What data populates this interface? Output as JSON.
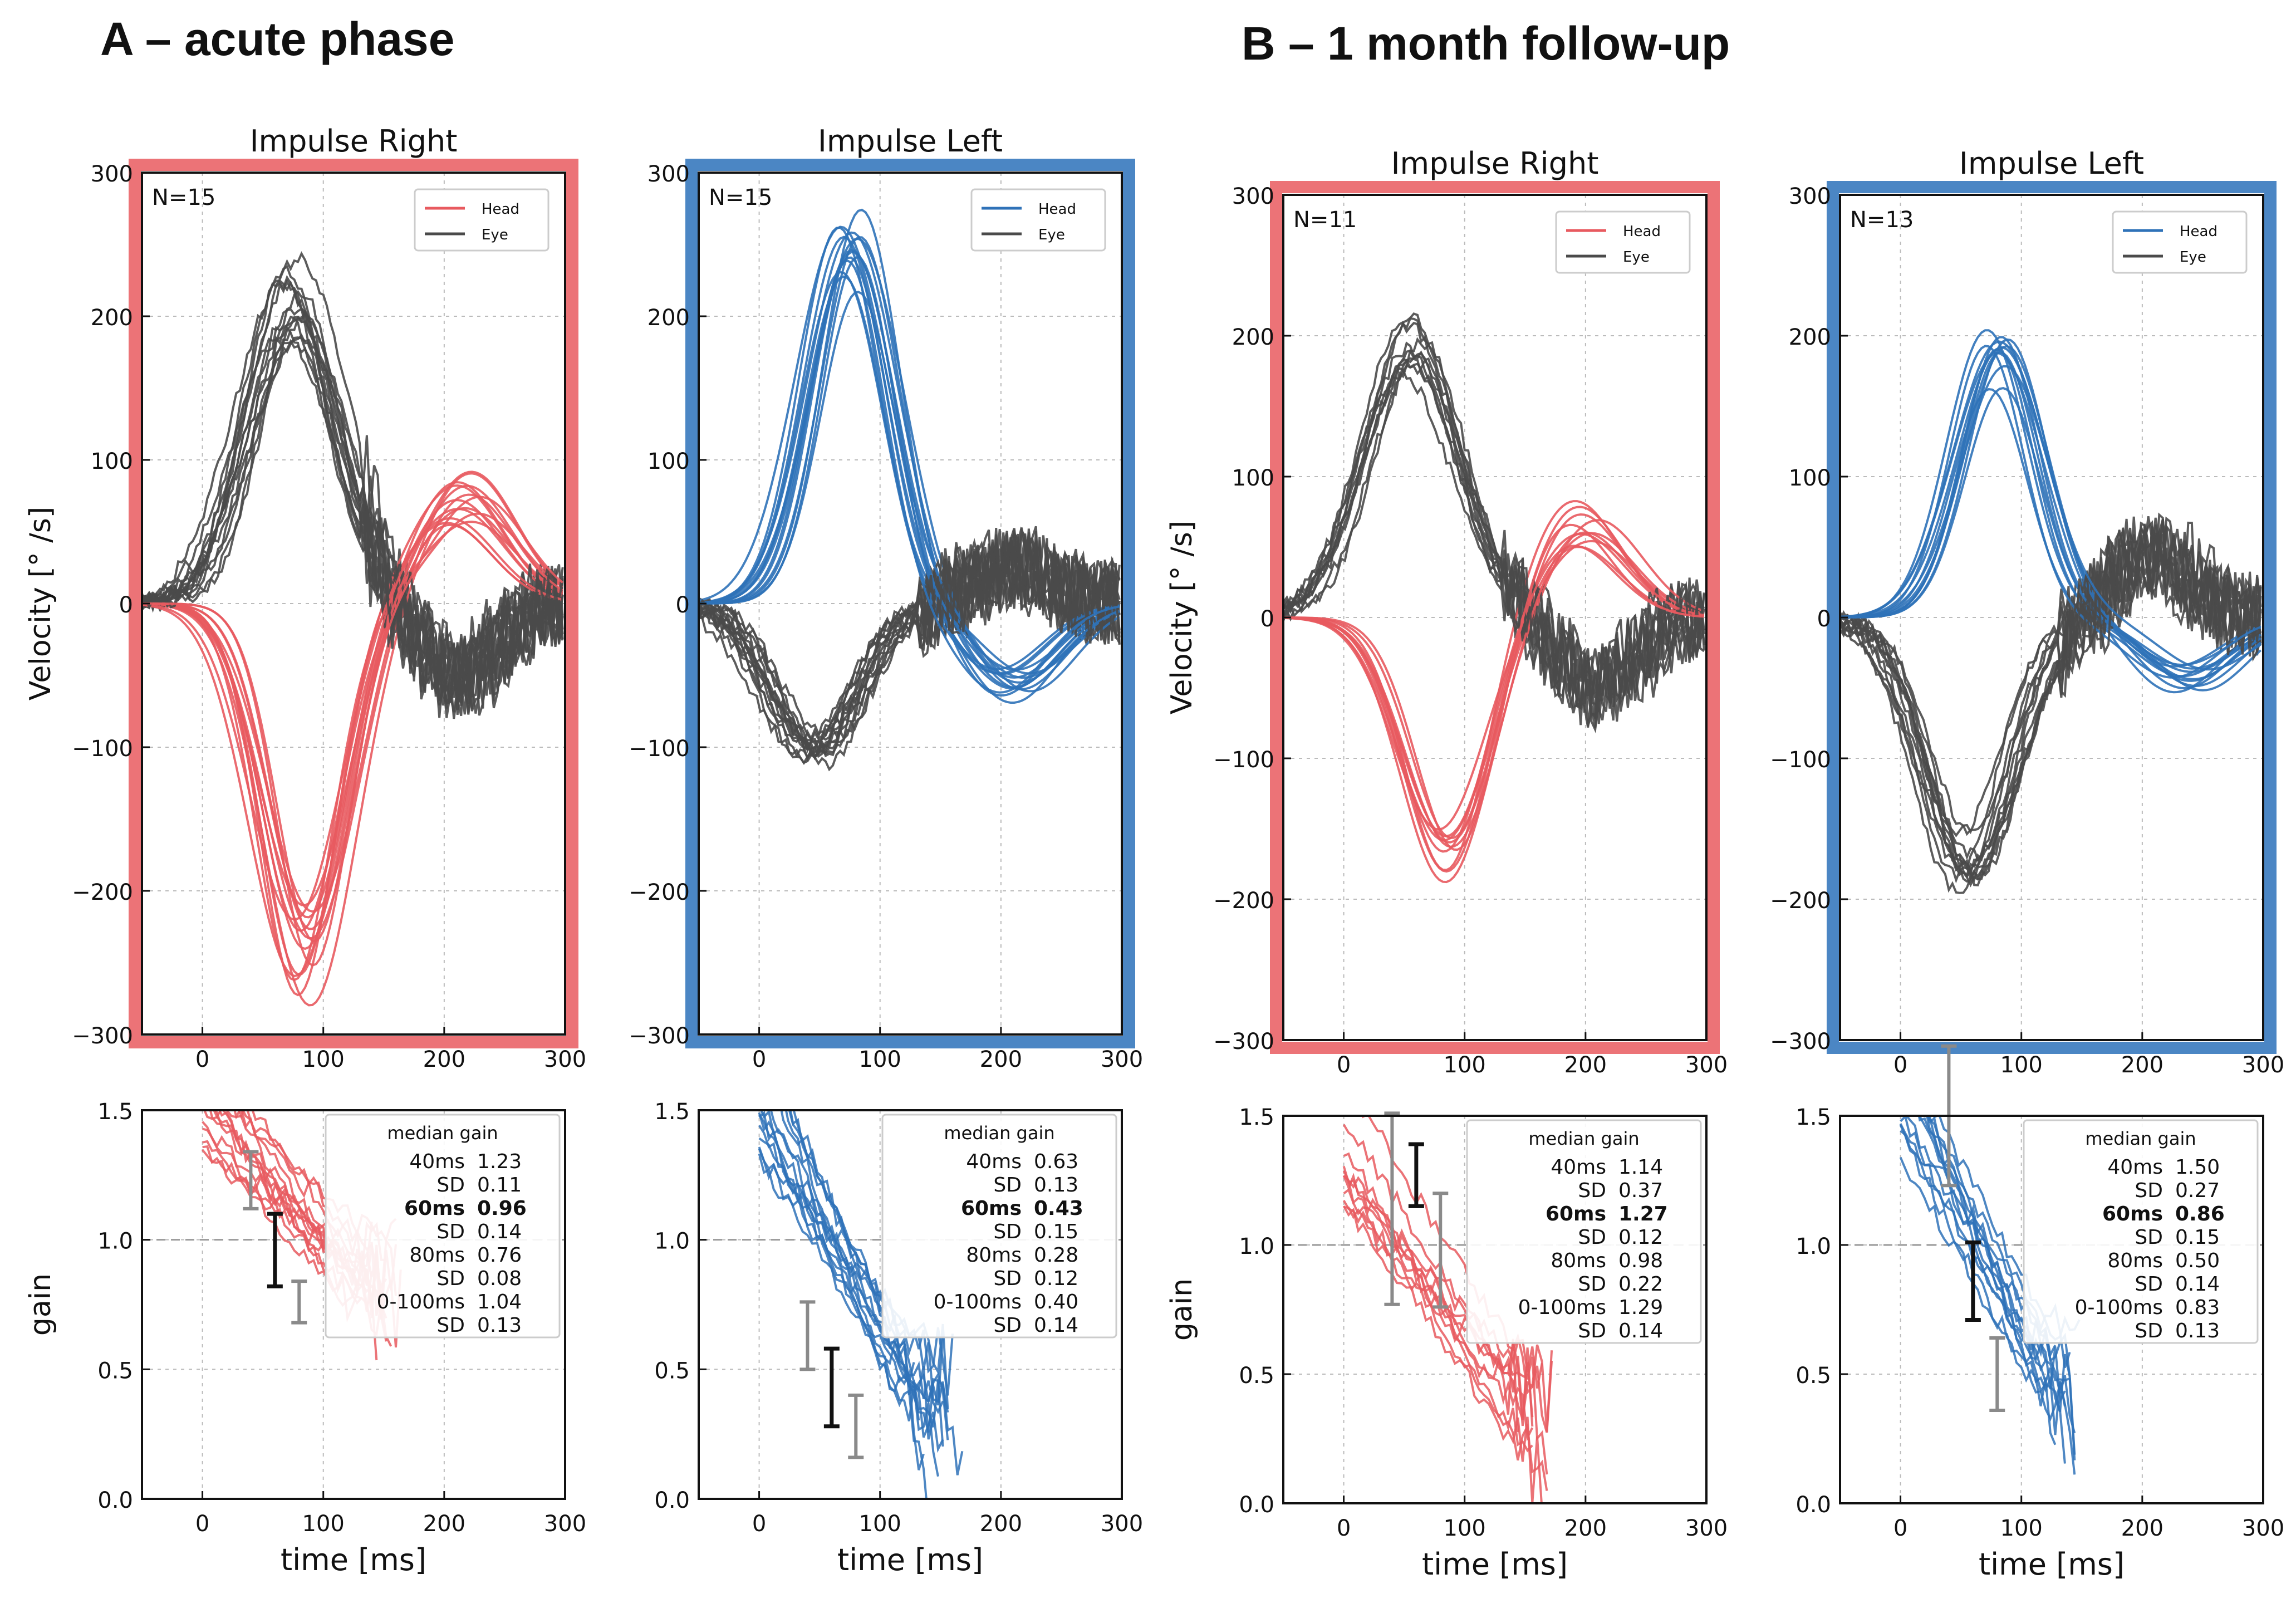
{
  "sections": [
    {
      "id": "A",
      "title": "A – acute phase"
    },
    {
      "id": "B",
      "title": "B – 1 month follow-up"
    }
  ],
  "colors": {
    "head_right": "#e85a5f",
    "head_left": "#2f72b8",
    "eye": "#4a4a4a",
    "frame_right": "#ec7377",
    "frame_left": "#4b86c4"
  },
  "axis_labels": {
    "velocity": "Velocity [° /s]",
    "gain": "gain",
    "time": "time [ms]"
  },
  "chart_data": [
    {
      "type": "line",
      "section": "A",
      "title": "Impulse Right",
      "n_label": "N=15",
      "legend": [
        "Head",
        "Eye"
      ],
      "ylabel": "Velocity [° /s]",
      "xlim": [
        -50,
        300
      ],
      "ylim": [
        -300,
        300
      ],
      "xticks": [
        0,
        100,
        200,
        300
      ],
      "xtick_labels": [
        "0",
        "100",
        "200",
        "300"
      ],
      "yticks": [
        -300,
        -200,
        -100,
        0,
        100,
        200,
        300
      ],
      "ytick_labels": [
        "−300",
        "−200",
        "−100",
        "0",
        "100",
        "200",
        "300"
      ],
      "head_peak": -245,
      "eye_peak": 210,
      "eye_peak_t": 75,
      "head_peak_t": 85,
      "head_rebound": 80,
      "head_rebound_t": 215,
      "n_traces": 15,
      "gain": {
        "title": "median gain",
        "xlabel": "time [ms]",
        "ylabel": "gain",
        "xlim": [
          -50,
          300
        ],
        "ylim": [
          0,
          1.5
        ],
        "xticks": [
          0,
          100,
          200,
          300
        ],
        "xtick_labels": [
          "0",
          "100",
          "200",
          "300"
        ],
        "yticks": [
          0,
          0.5,
          1.0,
          1.5
        ],
        "ytick_labels": [
          "0.0",
          "0.5",
          "1.0",
          "1.5"
        ],
        "start": 1.45,
        "end": 0.75,
        "t_end": 150,
        "errorbars": [
          {
            "t": 40,
            "mean": 1.23,
            "sd": 0.11
          },
          {
            "t": 60,
            "mean": 0.96,
            "sd": 0.14
          },
          {
            "t": 80,
            "mean": 0.76,
            "sd": 0.08
          }
        ],
        "rows": [
          [
            "40ms",
            "1.23"
          ],
          [
            "SD",
            "0.11"
          ],
          [
            "60ms",
            "0.96"
          ],
          [
            "SD",
            "0.14"
          ],
          [
            "80ms",
            "0.76"
          ],
          [
            "SD",
            "0.08"
          ],
          [
            "0-100ms",
            "1.04"
          ],
          [
            "SD",
            "0.13"
          ]
        ],
        "bold_row": 2
      }
    },
    {
      "type": "line",
      "section": "A",
      "title": "Impulse Left",
      "n_label": "N=15",
      "legend": [
        "Head",
        "Eye"
      ],
      "ylabel": "",
      "xlim": [
        -50,
        300
      ],
      "ylim": [
        -300,
        300
      ],
      "xticks": [
        0,
        100,
        200,
        300
      ],
      "xtick_labels": [
        "0",
        "100",
        "200",
        "300"
      ],
      "yticks": [
        -300,
        -200,
        -100,
        0,
        100,
        200,
        300
      ],
      "ytick_labels": [
        "−300",
        "−200",
        "−100",
        "0",
        "100",
        "200",
        "300"
      ],
      "head_peak": 245,
      "eye_peak": -100,
      "eye_peak_t": 45,
      "head_peak_t": 75,
      "head_rebound": -60,
      "head_rebound_t": 210,
      "n_traces": 15,
      "gain": {
        "title": "median gain",
        "xlabel": "time [ms]",
        "ylabel": "",
        "xlim": [
          -50,
          300
        ],
        "ylim": [
          0,
          1.5
        ],
        "xticks": [
          0,
          100,
          200,
          300
        ],
        "xtick_labels": [
          "0",
          "100",
          "200",
          "300"
        ],
        "yticks": [
          0,
          0.5,
          1.0,
          1.5
        ],
        "ytick_labels": [
          "0.0",
          "0.5",
          "1.0",
          "1.5"
        ],
        "start": 1.45,
        "end": 0.25,
        "t_end": 150,
        "errorbars": [
          {
            "t": 40,
            "mean": 0.63,
            "sd": 0.13
          },
          {
            "t": 60,
            "mean": 0.43,
            "sd": 0.15
          },
          {
            "t": 80,
            "mean": 0.28,
            "sd": 0.12
          }
        ],
        "rows": [
          [
            "40ms",
            "0.63"
          ],
          [
            "SD",
            "0.13"
          ],
          [
            "60ms",
            "0.43"
          ],
          [
            "SD",
            "0.15"
          ],
          [
            "80ms",
            "0.28"
          ],
          [
            "SD",
            "0.12"
          ],
          [
            "0-100ms",
            "0.40"
          ],
          [
            "SD",
            "0.14"
          ]
        ],
        "bold_row": 2
      }
    },
    {
      "type": "line",
      "section": "B",
      "title": "Impulse Right",
      "n_label": "N=11",
      "legend": [
        "Head",
        "Eye"
      ],
      "ylabel": "Velocity [° /s]",
      "xlim": [
        -50,
        300
      ],
      "ylim": [
        -300,
        300
      ],
      "xticks": [
        0,
        100,
        200,
        300
      ],
      "xtick_labels": [
        "0",
        "100",
        "200",
        "300"
      ],
      "yticks": [
        -300,
        -200,
        -100,
        0,
        100,
        200,
        300
      ],
      "ytick_labels": [
        "−300",
        "−200",
        "−100",
        "0",
        "100",
        "200",
        "300"
      ],
      "head_peak": -175,
      "eye_peak": 200,
      "eye_peak_t": 55,
      "head_peak_t": 85,
      "head_rebound": 70,
      "head_rebound_t": 195,
      "n_traces": 11,
      "gain": {
        "title": "median gain",
        "xlabel": "time [ms]",
        "ylabel": "gain",
        "xlim": [
          -50,
          300
        ],
        "ylim": [
          0,
          1.5
        ],
        "xticks": [
          0,
          100,
          200,
          300
        ],
        "xtick_labels": [
          "0",
          "100",
          "200",
          "300"
        ],
        "yticks": [
          0,
          0.5,
          1.0,
          1.5
        ],
        "ytick_labels": [
          "0.0",
          "0.5",
          "1.0",
          "1.5"
        ],
        "start": 1.3,
        "end": 0.25,
        "t_end": 160,
        "errorbars": [
          {
            "t": 40,
            "mean": 1.14,
            "sd": 0.37
          },
          {
            "t": 60,
            "mean": 1.27,
            "sd": 0.12
          },
          {
            "t": 80,
            "mean": 0.98,
            "sd": 0.22
          }
        ],
        "rows": [
          [
            "40ms",
            "1.14"
          ],
          [
            "SD",
            "0.37"
          ],
          [
            "60ms",
            "1.27"
          ],
          [
            "SD",
            "0.12"
          ],
          [
            "80ms",
            "0.98"
          ],
          [
            "SD",
            "0.22"
          ],
          [
            "0-100ms",
            "1.29"
          ],
          [
            "SD",
            "0.14"
          ]
        ],
        "bold_row": 2
      }
    },
    {
      "type": "line",
      "section": "B",
      "title": "Impulse Left",
      "n_label": "N=13",
      "legend": [
        "Head",
        "Eye"
      ],
      "ylabel": "",
      "xlim": [
        -50,
        300
      ],
      "ylim": [
        -300,
        300
      ],
      "xticks": [
        0,
        100,
        200,
        300
      ],
      "xtick_labels": [
        "0",
        "100",
        "200",
        "300"
      ],
      "yticks": [
        -300,
        -200,
        -100,
        0,
        100,
        200,
        300
      ],
      "ytick_labels": [
        "−300",
        "−200",
        "−100",
        "0",
        "100",
        "200",
        "300"
      ],
      "head_peak": 185,
      "eye_peak": -175,
      "eye_peak_t": 55,
      "head_peak_t": 80,
      "head_rebound": -45,
      "head_rebound_t": 240,
      "n_traces": 13,
      "gain": {
        "title": "median gain",
        "xlabel": "time [ms]",
        "ylabel": "",
        "xlim": [
          -50,
          300
        ],
        "ylim": [
          0,
          1.5
        ],
        "xticks": [
          0,
          100,
          200,
          300
        ],
        "xtick_labels": [
          "0",
          "100",
          "200",
          "300"
        ],
        "yticks": [
          0,
          0.5,
          1.0,
          1.5
        ],
        "ytick_labels": [
          "0.0",
          "0.5",
          "1.0",
          "1.5"
        ],
        "start": 1.45,
        "end": 0.35,
        "t_end": 135,
        "errorbars": [
          {
            "t": 40,
            "mean": 1.5,
            "sd": 0.27
          },
          {
            "t": 60,
            "mean": 0.86,
            "sd": 0.15
          },
          {
            "t": 80,
            "mean": 0.5,
            "sd": 0.14
          }
        ],
        "rows": [
          [
            "40ms",
            "1.50"
          ],
          [
            "SD",
            "0.27"
          ],
          [
            "60ms",
            "0.86"
          ],
          [
            "SD",
            "0.15"
          ],
          [
            "80ms",
            "0.50"
          ],
          [
            "SD",
            "0.14"
          ],
          [
            "0-100ms",
            "0.83"
          ],
          [
            "SD",
            "0.13"
          ]
        ],
        "bold_row": 2
      }
    }
  ]
}
